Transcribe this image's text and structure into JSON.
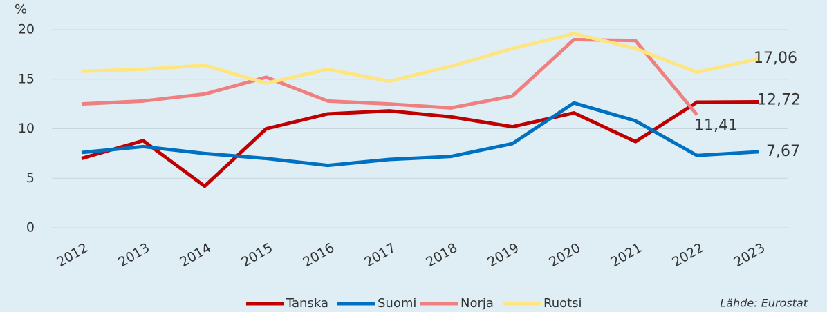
{
  "chart_data": {
    "type": "line",
    "y_label": "%",
    "source": "Lähde: Eurostat",
    "categories": [
      "2012",
      "2013",
      "2014",
      "2015",
      "2016",
      "2017",
      "2018",
      "2019",
      "2020",
      "2021",
      "2022",
      "2023"
    ],
    "ylim": [
      0,
      20
    ],
    "yticks": [
      0,
      5,
      10,
      15,
      20
    ],
    "grid": true,
    "legend": "bottom",
    "series": [
      {
        "name": "Tanska",
        "color": "#c00000",
        "values": [
          7.0,
          8.8,
          4.2,
          10.0,
          11.5,
          11.8,
          11.2,
          10.2,
          11.6,
          8.7,
          12.68,
          12.72
        ],
        "value_labels": [
          null,
          null,
          null,
          null,
          null,
          null,
          null,
          null,
          null,
          null,
          null,
          "12,72"
        ]
      },
      {
        "name": "Suomi",
        "color": "#0070c0",
        "values": [
          7.6,
          8.2,
          7.5,
          7.0,
          6.3,
          6.9,
          7.2,
          8.5,
          12.6,
          10.8,
          7.3,
          7.67
        ],
        "value_labels": [
          null,
          null,
          null,
          null,
          null,
          null,
          null,
          null,
          null,
          null,
          null,
          "7,67"
        ]
      },
      {
        "name": "Norja",
        "color": "#f08080",
        "values": [
          12.5,
          12.8,
          13.5,
          15.2,
          12.8,
          12.5,
          12.1,
          13.3,
          19.0,
          18.9,
          11.41,
          null
        ],
        "value_labels": [
          null,
          null,
          null,
          null,
          null,
          null,
          null,
          null,
          null,
          null,
          "11,41",
          null
        ]
      },
      {
        "name": "Ruotsi",
        "color": "#ffe580",
        "values": [
          15.8,
          16.0,
          16.4,
          14.6,
          16.0,
          14.8,
          16.3,
          18.1,
          19.6,
          18.1,
          15.7,
          17.06
        ],
        "value_labels": [
          null,
          null,
          null,
          null,
          null,
          null,
          null,
          null,
          null,
          null,
          null,
          "17,06"
        ]
      }
    ]
  }
}
